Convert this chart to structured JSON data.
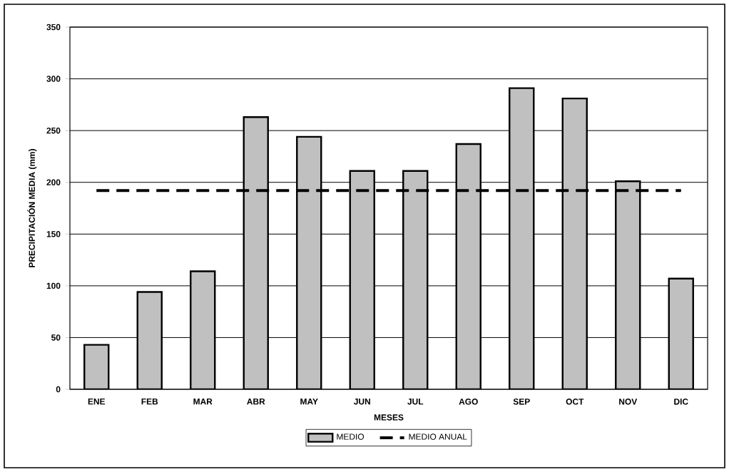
{
  "chart_data": {
    "type": "bar",
    "xlabel": "MESES",
    "ylabel": "PRECIPITACIÓN MEDIA (mm)",
    "categories": [
      "ENE",
      "FEB",
      "MAR",
      "ABR",
      "MAY",
      "JUN",
      "JUL",
      "AGO",
      "SEP",
      "OCT",
      "NOV",
      "DIC"
    ],
    "series": [
      {
        "name": "MEDIO",
        "color": "#c0c0c0",
        "values": [
          43,
          94,
          114,
          263,
          244,
          211,
          211,
          237,
          291,
          281,
          201,
          107
        ]
      },
      {
        "name": "MEDIO ANUAL",
        "type": "line",
        "line_style": "dashed",
        "color": "#000000",
        "values": [
          192,
          192,
          192,
          192,
          192,
          192,
          192,
          192,
          192,
          192,
          192,
          192
        ]
      }
    ],
    "ylim": [
      0,
      350
    ],
    "yticks": [
      0,
      50,
      100,
      150,
      200,
      250,
      300,
      350
    ],
    "grid": "y",
    "legend": "bottom"
  }
}
